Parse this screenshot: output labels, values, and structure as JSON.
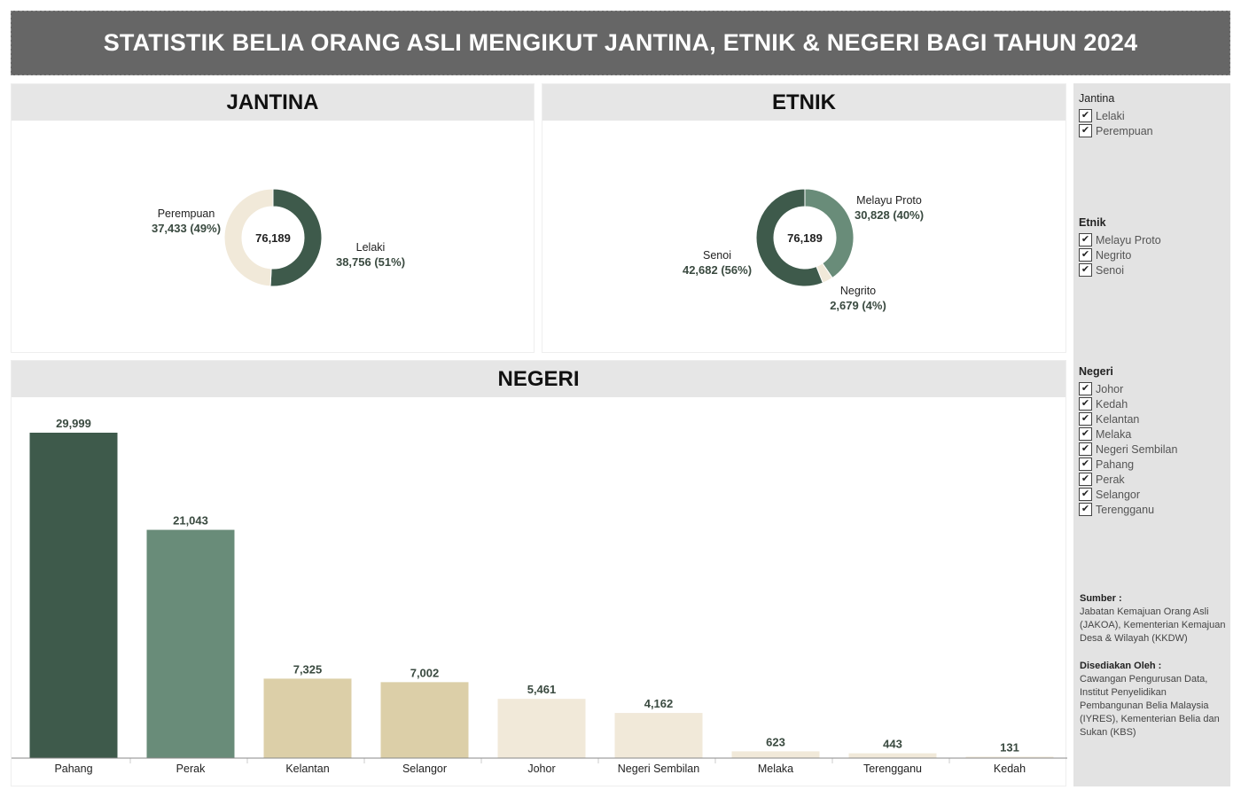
{
  "title": "STATISTIK BELIA ORANG ASLI MENGIKUT JANTINA, ETNIK & NEGERI BAGI TAHUN 2024",
  "panels": {
    "jantina_title": "JANTINA",
    "etnik_title": "ETNIK",
    "negeri_title": "NEGERI"
  },
  "colors": {
    "dark_green": "#3e5a4b",
    "mid_green": "#698c79",
    "tan": "#dccfa8",
    "cream": "#f1e9d9",
    "header_bg": "#666666"
  },
  "chart_data": [
    {
      "type": "pie",
      "name": "jantina",
      "total": "76,189",
      "slices": [
        {
          "label": "Lelaki",
          "value": 38756,
          "display": "38,756 (51%)",
          "color": "#3e5a4b"
        },
        {
          "label": "Perempuan",
          "value": 37433,
          "display": "37,433 (49%)",
          "color": "#f1e9d9"
        }
      ]
    },
    {
      "type": "pie",
      "name": "etnik",
      "total": "76,189",
      "slices": [
        {
          "label": "Melayu Proto",
          "value": 30828,
          "display": "30,828 (40%)",
          "color": "#698c79"
        },
        {
          "label": "Negrito",
          "value": 2679,
          "display": "2,679 (4%)",
          "color": "#f1e9d9"
        },
        {
          "label": "Senoi",
          "value": 42682,
          "display": "42,682 (56%)",
          "color": "#3e5a4b"
        }
      ]
    },
    {
      "type": "bar",
      "name": "negeri",
      "categories": [
        "Pahang",
        "Perak",
        "Kelantan",
        "Selangor",
        "Johor",
        "Negeri Sembilan",
        "Melaka",
        "Terengganu",
        "Kedah"
      ],
      "values": [
        29999,
        21043,
        7325,
        7002,
        5461,
        4162,
        623,
        443,
        131
      ],
      "value_labels": [
        "29,999",
        "21,043",
        "7,325",
        "7,002",
        "5,461",
        "4,162",
        "623",
        "443",
        "131"
      ],
      "colors": [
        "#3e5a4b",
        "#698c79",
        "#dccfa8",
        "#dccfa8",
        "#f1e9d9",
        "#f1e9d9",
        "#f1e9d9",
        "#f1e9d9",
        "#f1e9d9"
      ],
      "ylim": [
        0,
        29999
      ]
    }
  ],
  "filters": {
    "jantina": {
      "title": "Jantina",
      "items": [
        "Lelaki",
        "Perempuan"
      ]
    },
    "etnik": {
      "title": "Etnik",
      "items": [
        "Melayu Proto",
        "Negrito",
        "Senoi"
      ]
    },
    "negeri": {
      "title": "Negeri",
      "items": [
        "Johor",
        "Kedah",
        "Kelantan",
        "Melaka",
        "Negeri Sembilan",
        "Pahang",
        "Perak",
        "Selangor",
        "Terengganu"
      ]
    },
    "check_mark": "✔"
  },
  "source": {
    "sumber_title": "Sumber :",
    "sumber_text": "Jabatan Kemajuan Orang Asli (JAKOA), Kementerian Kemajuan Desa & Wilayah (KKDW)",
    "disediakan_title": "Disediakan Oleh :",
    "disediakan_text": "Cawangan Pengurusan Data, Institut Penyelidikan Pembangunan Belia Malaysia (IYRES), Kementerian Belia dan Sukan (KBS)"
  }
}
